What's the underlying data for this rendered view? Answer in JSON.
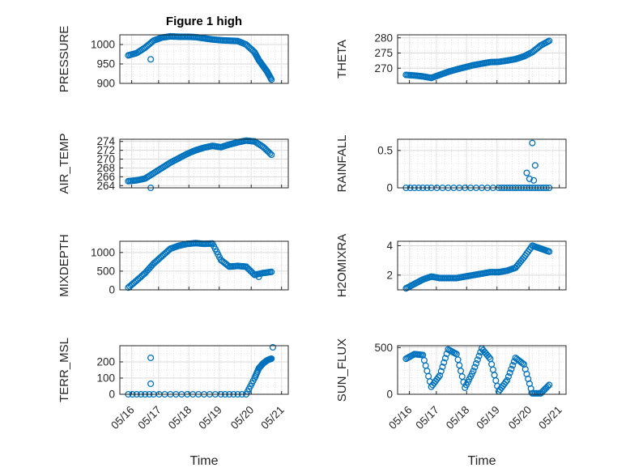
{
  "figure": {
    "title": "Figure 1 high",
    "xlabel": "Time",
    "x_ticks": [
      "05/16",
      "05/17",
      "05/18",
      "05/19",
      "05/20",
      "05/21"
    ],
    "marker_color": "#0072BD"
  },
  "chart_data": [
    {
      "type": "scatter",
      "name": "PRESSURE",
      "ylabel": "PRESSURE",
      "x": [
        "05/16 06:00",
        "05/16 12:00",
        "05/16 18:00",
        "05/17 00:00",
        "05/17 06:00",
        "05/17 12:00",
        "05/17 18:00",
        "05/18 00:00",
        "05/18 06:00",
        "05/18 12:00",
        "05/18 18:00",
        "05/19 00:00",
        "05/19 06:00",
        "05/19 12:00",
        "05/19 18:00",
        "05/20 00:00",
        "05/20 03:00",
        "05/20 06:00",
        "05/20 09:00",
        "05/20 12:00"
      ],
      "values": [
        972,
        978,
        992,
        1010,
        1018,
        1021,
        1020,
        1020,
        1019,
        1016,
        1013,
        1011,
        1010,
        1009,
        1000,
        980,
        960,
        945,
        930,
        910
      ],
      "outliers": [
        {
          "x": "05/16 22:00",
          "y": 962
        }
      ],
      "xlim": [
        "05/16 00:00",
        "05/21 00:00"
      ],
      "ylim": [
        900,
        1025
      ],
      "yticks": [
        "900",
        "950",
        "1000"
      ],
      "grid": true
    },
    {
      "type": "scatter",
      "name": "THETA",
      "ylabel": "THETA",
      "x": [
        "05/16 06:00",
        "05/16 12:00",
        "05/16 18:00",
        "05/17 00:00",
        "05/17 06:00",
        "05/17 12:00",
        "05/17 18:00",
        "05/18 00:00",
        "05/18 06:00",
        "05/18 12:00",
        "05/18 18:00",
        "05/19 00:00",
        "05/19 06:00",
        "05/19 12:00",
        "05/19 18:00",
        "05/20 00:00",
        "05/20 06:00",
        "05/20 12:00"
      ],
      "values": [
        267.8,
        267.6,
        267.3,
        266.8,
        267.8,
        268.8,
        269.6,
        270.3,
        271.0,
        271.5,
        272.0,
        272.1,
        272.5,
        273.0,
        273.9,
        275.3,
        277.5,
        279.0
      ],
      "xlim": [
        "05/16 00:00",
        "05/21 00:00"
      ],
      "ylim": [
        265,
        281
      ],
      "yticks": [
        "270",
        "275",
        "280"
      ],
      "grid": true
    },
    {
      "type": "scatter",
      "name": "AIR_TEMP",
      "ylabel": "AIR_TEMP",
      "x": [
        "05/16 06:00",
        "05/16 12:00",
        "05/16 18:00",
        "05/17 00:00",
        "05/17 06:00",
        "05/17 12:00",
        "05/17 18:00",
        "05/18 00:00",
        "05/18 06:00",
        "05/18 12:00",
        "05/18 18:00",
        "05/19 00:00",
        "05/19 06:00",
        "05/19 12:00",
        "05/19 18:00",
        "05/20 00:00",
        "05/20 06:00",
        "05/20 12:00"
      ],
      "values": [
        265.0,
        265.2,
        265.6,
        266.8,
        268.0,
        269.2,
        270.2,
        271.2,
        272.0,
        272.6,
        273.0,
        272.7,
        273.3,
        273.8,
        274.2,
        274.0,
        272.8,
        271.0
      ],
      "outliers": [
        {
          "x": "05/16 22:00",
          "y": 263.5
        }
      ],
      "xlim": [
        "05/16 00:00",
        "05/21 00:00"
      ],
      "ylim": [
        263.5,
        274.5
      ],
      "yticks": [
        "264",
        "266",
        "268",
        "270",
        "272",
        "274"
      ],
      "grid": true
    },
    {
      "type": "scatter",
      "name": "RAINFALL",
      "ylabel": "RAINFALL",
      "x": [
        "05/16 06:00",
        "05/17 00:00",
        "05/18 00:00",
        "05/19 00:00",
        "05/19 12:00",
        "05/20 00:00",
        "05/20 12:00"
      ],
      "values": [
        0,
        0,
        0,
        0,
        0,
        0,
        0
      ],
      "outliers": [
        {
          "x": "05/19 20:00",
          "y": 0.2
        },
        {
          "x": "05/19 22:00",
          "y": 0.12
        },
        {
          "x": "05/20 00:00",
          "y": 0.6
        },
        {
          "x": "05/20 02:00",
          "y": 0.3
        },
        {
          "x": "05/20 01:00",
          "y": 0.1
        }
      ],
      "xlim": [
        "05/16 00:00",
        "05/21 00:00"
      ],
      "ylim": [
        0,
        0.65
      ],
      "yticks": [
        "0",
        "0.5"
      ],
      "grid": true
    },
    {
      "type": "scatter",
      "name": "MIXDEPTH",
      "ylabel": "MIXDEPTH",
      "x": [
        "05/16 06:00",
        "05/16 12:00",
        "05/16 18:00",
        "05/17 00:00",
        "05/17 06:00",
        "05/17 12:00",
        "05/17 18:00",
        "05/18 00:00",
        "05/18 06:00",
        "05/18 12:00",
        "05/18 18:00",
        "05/19 00:00",
        "05/19 06:00",
        "05/19 12:00",
        "05/19 18:00",
        "05/20 00:00",
        "05/20 06:00",
        "05/20 12:00"
      ],
      "values": [
        60,
        250,
        450,
        700,
        900,
        1100,
        1180,
        1230,
        1250,
        1230,
        1240,
        800,
        620,
        640,
        620,
        400,
        450,
        480
      ],
      "outliers": [
        {
          "x": "05/20 03:00",
          "y": 350
        }
      ],
      "xlim": [
        "05/16 00:00",
        "05/21 00:00"
      ],
      "ylim": [
        0,
        1300
      ],
      "yticks": [
        "0",
        "500",
        "1000"
      ],
      "grid": true
    },
    {
      "type": "scatter",
      "name": "H2OMIXRA",
      "ylabel": "H2OMIXRA",
      "x": [
        "05/16 06:00",
        "05/16 12:00",
        "05/16 18:00",
        "05/17 00:00",
        "05/17 06:00",
        "05/17 12:00",
        "05/17 18:00",
        "05/18 00:00",
        "05/18 06:00",
        "05/18 12:00",
        "05/18 18:00",
        "05/19 00:00",
        "05/19 06:00",
        "05/19 12:00",
        "05/19 18:00",
        "05/20 00:00",
        "05/20 06:00",
        "05/20 12:00"
      ],
      "values": [
        1.1,
        1.4,
        1.7,
        1.9,
        1.8,
        1.8,
        1.8,
        1.9,
        2.0,
        2.1,
        2.2,
        2.2,
        2.3,
        2.5,
        3.2,
        4.0,
        3.8,
        3.6
      ],
      "xlim": [
        "05/16 00:00",
        "05/21 00:00"
      ],
      "ylim": [
        1,
        4.3
      ],
      "yticks": [
        "2",
        "4"
      ],
      "grid": true
    },
    {
      "type": "scatter",
      "name": "TERR_MSL",
      "ylabel": "TERR_MSL",
      "x": [
        "05/16 06:00",
        "05/17 00:00",
        "05/18 00:00",
        "05/19 00:00",
        "05/19 18:00",
        "05/20 00:00",
        "05/20 03:00",
        "05/20 06:00",
        "05/20 09:00",
        "05/20 12:00"
      ],
      "values": [
        0,
        0,
        0,
        0,
        0,
        100,
        160,
        190,
        210,
        220
      ],
      "outliers": [
        {
          "x": "05/16 22:00",
          "y": 225
        },
        {
          "x": "05/16 22:00",
          "y": 65
        },
        {
          "x": "05/20 13:00",
          "y": 290
        }
      ],
      "xlim": [
        "05/16 00:00",
        "05/21 00:00"
      ],
      "ylim": [
        0,
        300
      ],
      "yticks": [
        "0",
        "100",
        "200"
      ],
      "grid": true
    },
    {
      "type": "scatter",
      "name": "SUN_FLUX",
      "ylabel": "SUN_FLUX",
      "x": [
        "05/16 06:00",
        "05/16 12:00",
        "05/16 18:00",
        "05/17 00:00",
        "05/17 06:00",
        "05/17 12:00",
        "05/17 18:00",
        "05/18 00:00",
        "05/18 06:00",
        "05/18 12:00",
        "05/18 18:00",
        "05/19 00:00",
        "05/19 06:00",
        "05/19 12:00",
        "05/19 18:00",
        "05/20 00:00",
        "05/20 06:00",
        "05/20 12:00"
      ],
      "values": [
        380,
        430,
        420,
        80,
        200,
        480,
        430,
        70,
        250,
        490,
        380,
        30,
        150,
        390,
        320,
        10,
        10,
        100
      ],
      "xlim": [
        "05/16 00:00",
        "05/21 00:00"
      ],
      "ylim": [
        0,
        520
      ],
      "yticks": [
        "0",
        "500"
      ],
      "grid": true
    }
  ]
}
